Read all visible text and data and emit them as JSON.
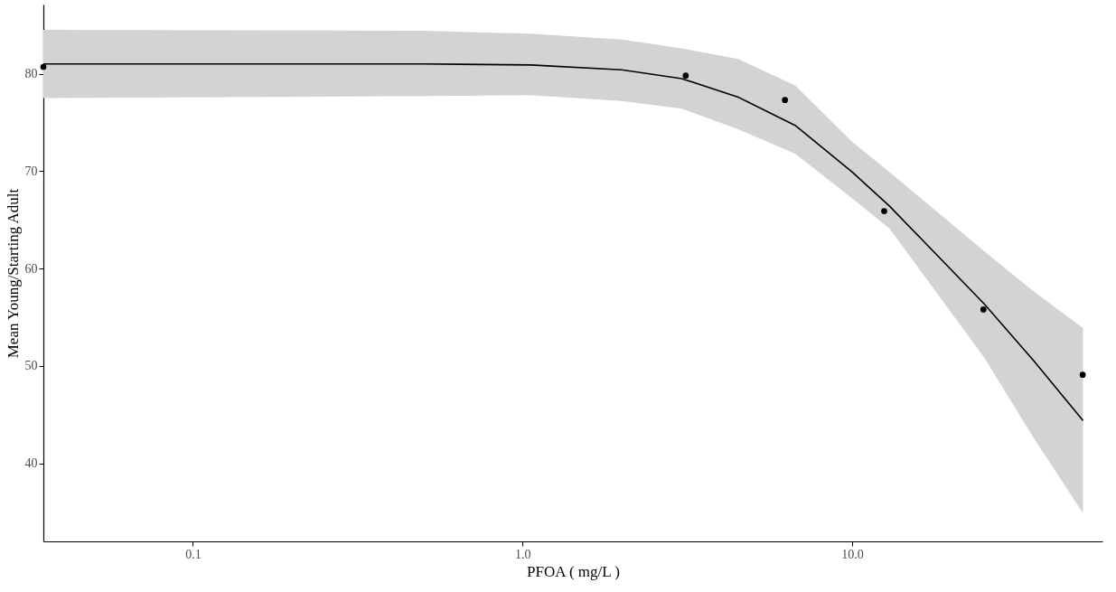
{
  "chart_data": {
    "type": "scatter",
    "xlabel": "PFOA ( mg/L )",
    "ylabel": "Mean Young/Starting Adult",
    "log": "x",
    "xlim": [
      0.0352,
      57.4
    ],
    "ylim": [
      32.0,
      87.1
    ],
    "xticks": [
      {
        "value": 0.1,
        "label": "0.1"
      },
      {
        "value": 1,
        "label": "1.0"
      },
      {
        "value": 10,
        "label": "10.0"
      }
    ],
    "yticks": [
      40,
      50,
      60,
      70,
      80
    ],
    "grid": false,
    "series": [
      {
        "type": "line",
        "color": "#000000",
        "x": [
          0.0352,
          0.5,
          1.06,
          2,
          3.04,
          4.51,
          6.71,
          10,
          12.98,
          25.1,
          35.4,
          50.1
        ],
        "values": [
          81.0,
          81.0,
          80.9,
          80.4,
          79.5,
          77.6,
          74.7,
          69.9,
          66.4,
          56.4,
          50.6,
          44.4
        ],
        "upper": [
          84.5,
          84.4,
          84.1,
          83.5,
          82.6,
          81.5,
          78.8,
          73.0,
          69.9,
          61.8,
          57.7,
          53.9
        ],
        "lower": [
          77.5,
          77.7,
          77.8,
          77.2,
          76.4,
          74.3,
          71.8,
          67.2,
          64.1,
          50.9,
          42.7,
          34.9
        ]
      },
      {
        "color": "#000000",
        "marker": "circle",
        "x": [
          0.0352,
          3.125,
          6.25,
          12.5,
          25,
          50
        ],
        "values": [
          80.7,
          79.8,
          77.3,
          65.9,
          55.8,
          49.1
        ]
      }
    ]
  }
}
